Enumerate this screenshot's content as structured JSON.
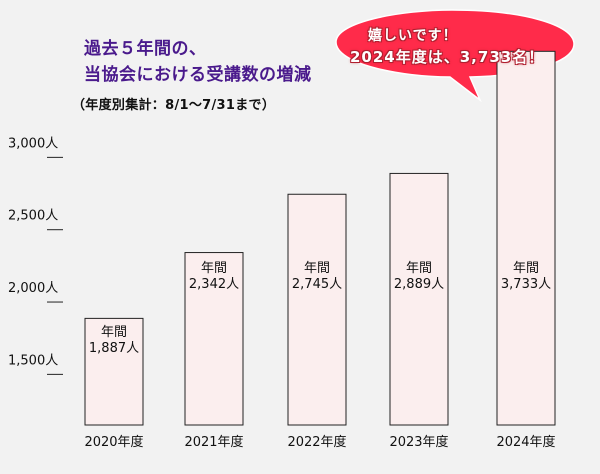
{
  "title_line1": "過去５年間の、",
  "title_line2": "当協会における受講数の増減",
  "subtitle": "（年度別集計：8/1〜7/31まで）",
  "callout": {
    "line1": "嬉しいです！",
    "line2": "2024年度は、3,733名！"
  },
  "colors": {
    "title": "#4a1a8c",
    "bar_fill": "#fbeeee",
    "bar_stroke": "#222222",
    "callout_fill": "#ff2b4a",
    "background": "#f2f2f2"
  },
  "chart_data": {
    "type": "bar",
    "categories": [
      "2020年度",
      "2021年度",
      "2022年度",
      "2023年度",
      "2024年度"
    ],
    "values": [
      1887,
      2342,
      2745,
      2889,
      3733
    ],
    "bar_label_prefix": "年間",
    "bar_labels": [
      "1,887人",
      "2,342人",
      "2,745人",
      "2,889人",
      "3,733人"
    ],
    "y_ticks": [
      1500,
      2000,
      2500,
      3000
    ],
    "y_tick_labels": [
      "1,500人",
      "2,000人",
      "2,500人",
      "3,000人"
    ],
    "ylim": [
      1150,
      3800
    ],
    "grid": false,
    "legend": "none"
  }
}
